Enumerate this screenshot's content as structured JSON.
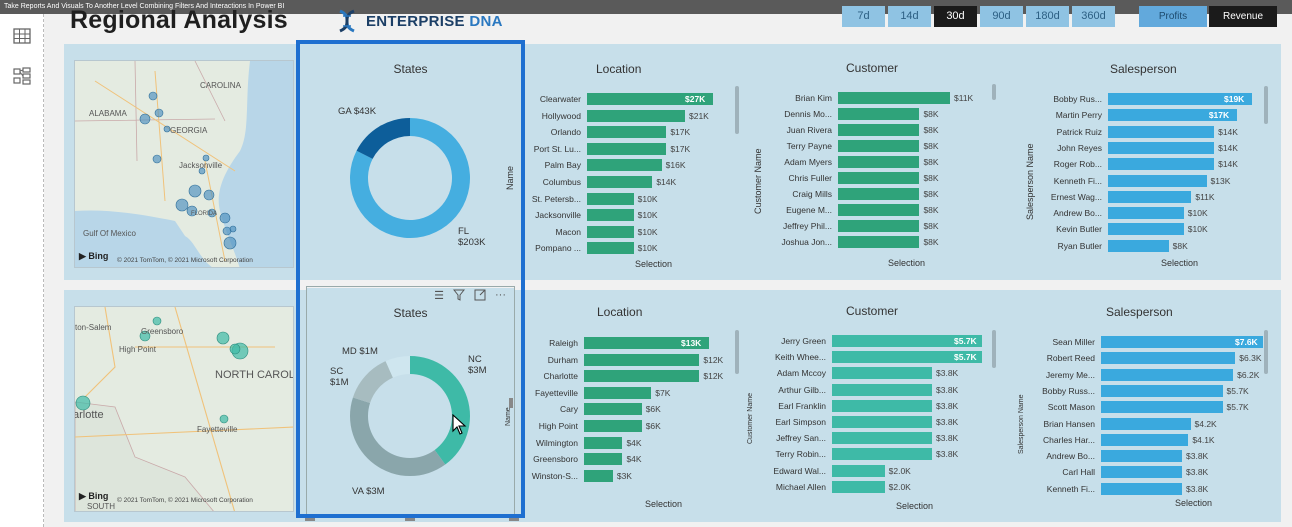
{
  "window": {
    "title": "Take Reports And Visuals To Another Level Combining Filters And Interactions In Power BI"
  },
  "header": {
    "title": "Regional Analysis",
    "logo_text_1": "ENTERPRISE",
    "logo_text_2": "DNA"
  },
  "periods": [
    {
      "label": "7d",
      "active": false
    },
    {
      "label": "14d",
      "active": false
    },
    {
      "label": "30d",
      "active": true
    },
    {
      "label": "90d",
      "active": false
    },
    {
      "label": "180d",
      "active": false
    },
    {
      "label": "360d",
      "active": false
    }
  ],
  "metrics": {
    "profits": "Profits",
    "revenue": "Revenue"
  },
  "colors": {
    "green": "#2fa37a",
    "teal": "#3ebaa7",
    "blue": "#3aa9de",
    "panel": "#c7dfea",
    "select": "#1e6fd0"
  },
  "top_map": {
    "labels": [
      "ALABAMA",
      "GEORGIA",
      "CAROLINA",
      "Jacksonville",
      "FLORIDA",
      "Gulf Of Mexico"
    ],
    "bing": "Bing",
    "copyright": "© 2021 TomTom, © 2021 Microsoft Corporation"
  },
  "bottom_map": {
    "labels": [
      "Greensboro",
      "ston-Salem",
      "High Point",
      "NORTH CAROLI",
      "arlotte",
      "Fayetteville",
      "SOUTH"
    ],
    "bing": "Bing",
    "copyright": "© 2021 TomTom, © 2021 Microsoft Corporation"
  },
  "top_donut": {
    "title": "States",
    "slices": [
      {
        "label": "FL",
        "value_label": "$203K",
        "value": 203,
        "color": "#45aee0"
      },
      {
        "label": "GA",
        "value_label": "$43K",
        "value": 43,
        "color": "#0d5e9a"
      }
    ]
  },
  "bottom_donut": {
    "title": "States",
    "slices": [
      {
        "label": "NC",
        "value_label": "$3M",
        "value": 3,
        "color": "#3ebaa7"
      },
      {
        "label": "VA",
        "value_label": "$3M",
        "value": 3,
        "color": "#8aa6ab"
      },
      {
        "label": "SC",
        "value_label": "$1M",
        "value": 1,
        "color": "#a7bcc0"
      },
      {
        "label": "MD",
        "value_label": "$1M",
        "value": 0.5,
        "color": "#cfe6ef"
      }
    ]
  },
  "top_location": {
    "title": "Location",
    "axis_y": "Name",
    "axis_x": "Selection",
    "max": 27,
    "rows": [
      {
        "name": "Clearwater",
        "value": 27,
        "label": "$27K"
      },
      {
        "name": "Hollywood",
        "value": 21,
        "label": "$21K"
      },
      {
        "name": "Orlando",
        "value": 17,
        "label": "$17K"
      },
      {
        "name": "Port St. Lu...",
        "value": 17,
        "label": "$17K"
      },
      {
        "name": "Palm Bay",
        "value": 16,
        "label": "$16K"
      },
      {
        "name": "Columbus",
        "value": 14,
        "label": "$14K"
      },
      {
        "name": "St. Petersb...",
        "value": 10,
        "label": "$10K"
      },
      {
        "name": "Jacksonville",
        "value": 10,
        "label": "$10K"
      },
      {
        "name": "Macon",
        "value": 10,
        "label": "$10K"
      },
      {
        "name": "Pompano ...",
        "value": 10,
        "label": "$10K"
      }
    ]
  },
  "top_customer": {
    "title": "Customer",
    "axis_y": "Customer Name",
    "axis_x": "Selection",
    "max": 11,
    "rows": [
      {
        "name": "Brian Kim",
        "value": 11,
        "label": "$11K"
      },
      {
        "name": "Dennis Mo...",
        "value": 8,
        "label": "$8K"
      },
      {
        "name": "Juan Rivera",
        "value": 8,
        "label": "$8K"
      },
      {
        "name": "Terry Payne",
        "value": 8,
        "label": "$8K"
      },
      {
        "name": "Adam Myers",
        "value": 8,
        "label": "$8K"
      },
      {
        "name": "Chris Fuller",
        "value": 8,
        "label": "$8K"
      },
      {
        "name": "Craig Mills",
        "value": 8,
        "label": "$8K"
      },
      {
        "name": "Eugene M...",
        "value": 8,
        "label": "$8K"
      },
      {
        "name": "Jeffrey Phil...",
        "value": 8,
        "label": "$8K"
      },
      {
        "name": "Joshua Jon...",
        "value": 8,
        "label": "$8K"
      }
    ]
  },
  "top_salesperson": {
    "title": "Salesperson",
    "axis_y": "Salesperson Name",
    "axis_x": "Selection",
    "max": 19,
    "rows": [
      {
        "name": "Bobby Rus...",
        "value": 19,
        "label": "$19K"
      },
      {
        "name": "Martin Perry",
        "value": 17,
        "label": "$17K"
      },
      {
        "name": "Patrick Ruiz",
        "value": 14,
        "label": "$14K"
      },
      {
        "name": "John Reyes",
        "value": 14,
        "label": "$14K"
      },
      {
        "name": "Roger Rob...",
        "value": 14,
        "label": "$14K"
      },
      {
        "name": "Kenneth Fi...",
        "value": 13,
        "label": "$13K"
      },
      {
        "name": "Ernest Wag...",
        "value": 11,
        "label": "$11K"
      },
      {
        "name": "Andrew Bo...",
        "value": 10,
        "label": "$10K"
      },
      {
        "name": "Kevin Butler",
        "value": 10,
        "label": "$10K"
      },
      {
        "name": "Ryan Butler",
        "value": 8,
        "label": "$8K"
      }
    ]
  },
  "bottom_location": {
    "title": "Location",
    "axis_y": "Name",
    "axis_x": "Selection",
    "max": 13,
    "rows": [
      {
        "name": "Raleigh",
        "value": 13,
        "label": "$13K"
      },
      {
        "name": "Durham",
        "value": 12,
        "label": "$12K"
      },
      {
        "name": "Charlotte",
        "value": 12,
        "label": "$12K"
      },
      {
        "name": "Fayetteville",
        "value": 7,
        "label": "$7K"
      },
      {
        "name": "Cary",
        "value": 6,
        "label": "$6K"
      },
      {
        "name": "High Point",
        "value": 6,
        "label": "$6K"
      },
      {
        "name": "Wilmington",
        "value": 4,
        "label": "$4K"
      },
      {
        "name": "Greensboro",
        "value": 4,
        "label": "$4K"
      },
      {
        "name": "Winston-S...",
        "value": 3,
        "label": "$3K"
      }
    ]
  },
  "bottom_customer": {
    "title": "Customer",
    "axis_y": "Customer Name",
    "axis_x": "Selection",
    "max": 5.7,
    "rows": [
      {
        "name": "Jerry Green",
        "value": 5.7,
        "label": "$5.7K"
      },
      {
        "name": "Keith Whee...",
        "value": 5.7,
        "label": "$5.7K"
      },
      {
        "name": "Adam Mccoy",
        "value": 3.8,
        "label": "$3.8K"
      },
      {
        "name": "Arthur Gilb...",
        "value": 3.8,
        "label": "$3.8K"
      },
      {
        "name": "Earl Franklin",
        "value": 3.8,
        "label": "$3.8K"
      },
      {
        "name": "Earl Simpson",
        "value": 3.8,
        "label": "$3.8K"
      },
      {
        "name": "Jeffrey San...",
        "value": 3.8,
        "label": "$3.8K"
      },
      {
        "name": "Terry Robin...",
        "value": 3.8,
        "label": "$3.8K"
      },
      {
        "name": "Edward Wal...",
        "value": 2.0,
        "label": "$2.0K"
      },
      {
        "name": "Michael Allen",
        "value": 2.0,
        "label": "$2.0K"
      }
    ]
  },
  "bottom_salesperson": {
    "title": "Salesperson",
    "axis_y": "Salesperson Name",
    "axis_x": "Selection",
    "max": 7.6,
    "rows": [
      {
        "name": "Sean Miller",
        "value": 7.6,
        "label": "$7.6K"
      },
      {
        "name": "Robert Reed",
        "value": 6.3,
        "label": "$6.3K"
      },
      {
        "name": "Jeremy Me...",
        "value": 6.2,
        "label": "$6.2K"
      },
      {
        "name": "Bobby Russ...",
        "value": 5.7,
        "label": "$5.7K"
      },
      {
        "name": "Scott Mason",
        "value": 5.7,
        "label": "$5.7K"
      },
      {
        "name": "Brian Hansen",
        "value": 4.2,
        "label": "$4.2K"
      },
      {
        "name": "Charles Har...",
        "value": 4.1,
        "label": "$4.1K"
      },
      {
        "name": "Andrew Bo...",
        "value": 3.8,
        "label": "$3.8K"
      },
      {
        "name": "Carl Hall",
        "value": 3.8,
        "label": "$3.8K"
      },
      {
        "name": "Kenneth Fi...",
        "value": 3.8,
        "label": "$3.8K"
      }
    ]
  }
}
